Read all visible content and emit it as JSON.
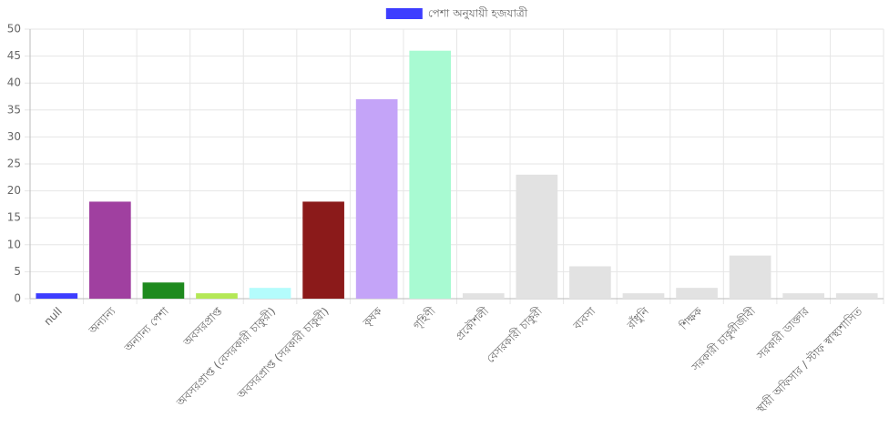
{
  "chart_data": {
    "type": "bar",
    "categories": [
      "null",
      "অন্যান্য",
      "অন্যান্য পেশা",
      "অবসরপ্রাপ্ত",
      "অবসরপ্রাপ্ত (বেসরকারী চাকুরী)",
      "অবসরপ্রাপ্ত (সরকারী চাকুরী)",
      "কৃষক",
      "গৃহিণী",
      "প্রকৌশলী",
      "বেসরকারী চাকুরী",
      "ব্যবসা",
      "রাঁধুনি",
      "শিক্ষক",
      "সরকারী চাকুরীজীবী",
      "সরকারী ডাক্তার",
      "স্থায়ী অফিসার / স্টাফ স্বাস্থ্যশাসিত"
    ],
    "series": [
      {
        "name": "পেশা অনুযায়ী হজযাত্রী",
        "color": "#3d3dff",
        "colors": [
          "#3d3dff",
          "#a040a0",
          "#1e8a1e",
          "#b4e856",
          "#b4fcfc",
          "#8b1a1a",
          "#c4a4f8",
          "#a8fad2",
          "#e2e2e2",
          "#e2e2e2",
          "#e2e2e2",
          "#e2e2e2",
          "#e2e2e2",
          "#e2e2e2",
          "#e2e2e2",
          "#e2e2e2"
        ],
        "values": [
          1,
          18,
          3,
          1,
          2,
          18,
          37,
          46,
          1,
          23,
          6,
          1,
          2,
          8,
          1,
          1
        ]
      }
    ],
    "ylim": [
      0,
      50
    ],
    "yticks": [
      0,
      5,
      10,
      15,
      20,
      25,
      30,
      35,
      40,
      45,
      50
    ],
    "grid": true,
    "legend": "top"
  }
}
